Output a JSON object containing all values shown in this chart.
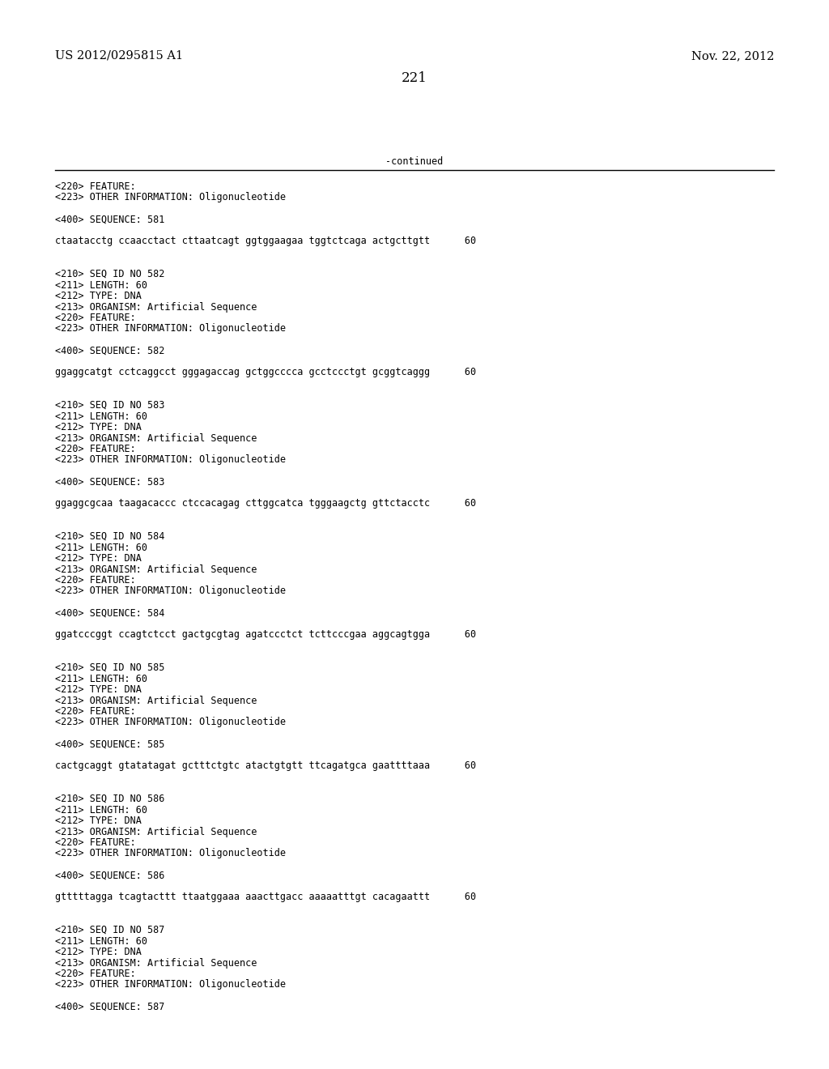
{
  "background_color": "#ffffff",
  "top_left_text": "US 2012/0295815 A1",
  "top_right_text": "Nov. 22, 2012",
  "page_number": "221",
  "continued_text": "-continued",
  "body_font_size": 8.5,
  "header_font_size": 10.5,
  "page_num_font_size": 12,
  "mono_font": "DejaVu Sans Mono",
  "serif_font": "DejaVu Serif",
  "lines": [
    "<220> FEATURE:",
    "<223> OTHER INFORMATION: Oligonucleotide",
    "",
    "<400> SEQUENCE: 581",
    "",
    "ctaatacctg ccaacctact cttaatcagt ggtggaagaa tggtctcaga actgcttgtt      60",
    "",
    "",
    "<210> SEQ ID NO 582",
    "<211> LENGTH: 60",
    "<212> TYPE: DNA",
    "<213> ORGANISM: Artificial Sequence",
    "<220> FEATURE:",
    "<223> OTHER INFORMATION: Oligonucleotide",
    "",
    "<400> SEQUENCE: 582",
    "",
    "ggaggcatgt cctcaggcct gggagaccag gctggcccca gcctccctgt gcggtcaggg      60",
    "",
    "",
    "<210> SEQ ID NO 583",
    "<211> LENGTH: 60",
    "<212> TYPE: DNA",
    "<213> ORGANISM: Artificial Sequence",
    "<220> FEATURE:",
    "<223> OTHER INFORMATION: Oligonucleotide",
    "",
    "<400> SEQUENCE: 583",
    "",
    "ggaggcgcaa taagacaccc ctccacagag cttggcatca tgggaagctg gttctacctc      60",
    "",
    "",
    "<210> SEQ ID NO 584",
    "<211> LENGTH: 60",
    "<212> TYPE: DNA",
    "<213> ORGANISM: Artificial Sequence",
    "<220> FEATURE:",
    "<223> OTHER INFORMATION: Oligonucleotide",
    "",
    "<400> SEQUENCE: 584",
    "",
    "ggatcccggt ccagtctcct gactgcgtag agatccctct tcttcccgaa aggcagtgga      60",
    "",
    "",
    "<210> SEQ ID NO 585",
    "<211> LENGTH: 60",
    "<212> TYPE: DNA",
    "<213> ORGANISM: Artificial Sequence",
    "<220> FEATURE:",
    "<223> OTHER INFORMATION: Oligonucleotide",
    "",
    "<400> SEQUENCE: 585",
    "",
    "cactgcaggt gtatatagat gctttctgtc atactgtgtt ttcagatgca gaattttaaa      60",
    "",
    "",
    "<210> SEQ ID NO 586",
    "<211> LENGTH: 60",
    "<212> TYPE: DNA",
    "<213> ORGANISM: Artificial Sequence",
    "<220> FEATURE:",
    "<223> OTHER INFORMATION: Oligonucleotide",
    "",
    "<400> SEQUENCE: 586",
    "",
    "gtttttagga tcagtacttt ttaatggaaa aaacttgacc aaaaatttgt cacagaattt      60",
    "",
    "",
    "<210> SEQ ID NO 587",
    "<211> LENGTH: 60",
    "<212> TYPE: DNA",
    "<213> ORGANISM: Artificial Sequence",
    "<220> FEATURE:",
    "<223> OTHER INFORMATION: Oligonucleotide",
    "",
    "<400> SEQUENCE: 587"
  ]
}
